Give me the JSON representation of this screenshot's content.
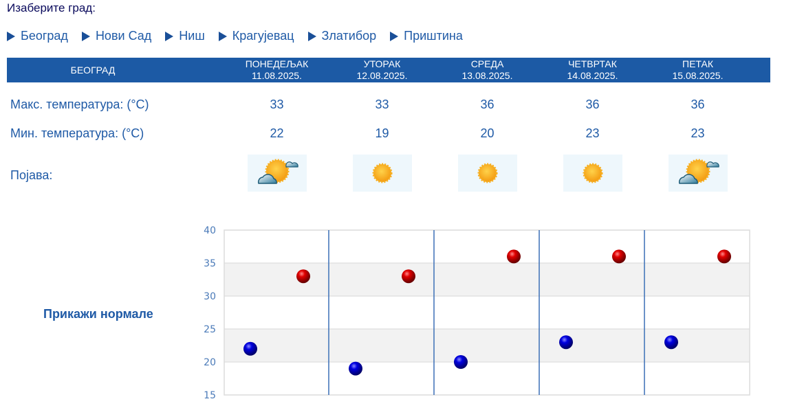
{
  "select_label": "Изаберите град:",
  "cities": [
    "Београд",
    "Нови Сад",
    "Ниш",
    "Крагујевац",
    "Златибор",
    "Приштина"
  ],
  "header": {
    "city": "БЕОГРАД",
    "days": [
      {
        "name": "ПОНЕДЕЉАК",
        "date": "11.08.2025."
      },
      {
        "name": "УТОРАК",
        "date": "12.08.2025."
      },
      {
        "name": "СРЕДА",
        "date": "13.08.2025."
      },
      {
        "name": "ЧЕТВРТАК",
        "date": "14.08.2025."
      },
      {
        "name": "ПЕТАК",
        "date": "15.08.2025."
      }
    ]
  },
  "rows": {
    "max_label": "Макс. температура: (°C)",
    "min_label": "Мин. температура: (°C)",
    "phenomenon_label": "Појава:",
    "max": [
      "33",
      "33",
      "36",
      "36",
      "36"
    ],
    "min": [
      "22",
      "19",
      "20",
      "23",
      "23"
    ],
    "phenomena": [
      "partly-cloudy-icon",
      "sunny-icon",
      "sunny-icon",
      "sunny-icon",
      "partly-cloudy-icon"
    ]
  },
  "normals_link": "Прикажи нормале",
  "colors": {
    "header_bg": "#1c5aa5",
    "text_blue": "#1f5aa6",
    "max_marker": "#cc0000",
    "min_marker": "#0000cc"
  },
  "chart_data": {
    "type": "scatter",
    "categories": [
      "11.08.2025.",
      "12.08.2025.",
      "13.08.2025.",
      "14.08.2025.",
      "15.08.2025."
    ],
    "series": [
      {
        "name": "Макс. температура",
        "values": [
          33,
          33,
          36,
          36,
          36
        ],
        "color": "#cc0000"
      },
      {
        "name": "Мин. температура",
        "values": [
          22,
          19,
          20,
          23,
          23
        ],
        "color": "#0000cc"
      }
    ],
    "yticks": [
      15,
      20,
      25,
      30,
      35,
      40
    ],
    "ylim": [
      15,
      40
    ],
    "grid": true,
    "title": "",
    "xlabel": "",
    "ylabel": ""
  }
}
